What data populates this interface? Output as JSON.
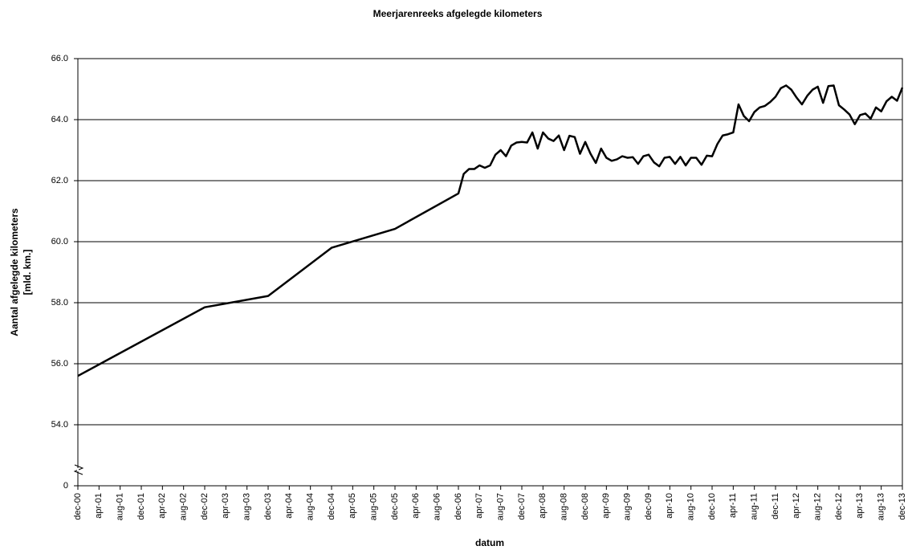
{
  "chart_data": {
    "type": "line",
    "title": "Meerjarenreeks afgelegde kilometers",
    "y_label": [
      "Aantal afgelegde kilometers",
      "[mld. km.]"
    ],
    "x_label": "datum",
    "color": "#000000",
    "grid": true,
    "ylim": [
      52,
      66
    ],
    "yticks": [
      {
        "value": 54,
        "label": "54.0"
      },
      {
        "value": 56,
        "label": "56.0"
      },
      {
        "value": 58,
        "label": "58.0"
      },
      {
        "value": 60,
        "label": "60.0"
      },
      {
        "value": 62,
        "label": "62.0"
      },
      {
        "value": 64,
        "label": "64.0"
      },
      {
        "value": 66,
        "label": "66.0"
      }
    ],
    "axis_break": {
      "value": 0,
      "label": "0"
    },
    "xlim": [
      "2000-12",
      "2013-12"
    ],
    "xticks": [
      {
        "value": "2000-12",
        "label": "dec-00"
      },
      {
        "value": "2001-04",
        "label": "apr-01"
      },
      {
        "value": "2001-08",
        "label": "aug-01"
      },
      {
        "value": "2001-12",
        "label": "dec-01"
      },
      {
        "value": "2002-04",
        "label": "apr-02"
      },
      {
        "value": "2002-08",
        "label": "aug-02"
      },
      {
        "value": "2002-12",
        "label": "dec-02"
      },
      {
        "value": "2003-04",
        "label": "apr-03"
      },
      {
        "value": "2003-08",
        "label": "aug-03"
      },
      {
        "value": "2003-12",
        "label": "dec-03"
      },
      {
        "value": "2004-04",
        "label": "apr-04"
      },
      {
        "value": "2004-08",
        "label": "aug-04"
      },
      {
        "value": "2004-12",
        "label": "dec-04"
      },
      {
        "value": "2005-04",
        "label": "apr-05"
      },
      {
        "value": "2005-08",
        "label": "aug-05"
      },
      {
        "value": "2005-12",
        "label": "dec-05"
      },
      {
        "value": "2006-04",
        "label": "apr-06"
      },
      {
        "value": "2006-08",
        "label": "aug-06"
      },
      {
        "value": "2006-12",
        "label": "dec-06"
      },
      {
        "value": "2007-04",
        "label": "apr-07"
      },
      {
        "value": "2007-08",
        "label": "aug-07"
      },
      {
        "value": "2007-12",
        "label": "dec-07"
      },
      {
        "value": "2008-04",
        "label": "apr-08"
      },
      {
        "value": "2008-08",
        "label": "aug-08"
      },
      {
        "value": "2008-12",
        "label": "dec-08"
      },
      {
        "value": "2009-04",
        "label": "apr-09"
      },
      {
        "value": "2009-08",
        "label": "aug-09"
      },
      {
        "value": "2009-12",
        "label": "dec-09"
      },
      {
        "value": "2010-04",
        "label": "apr-10"
      },
      {
        "value": "2010-08",
        "label": "aug-10"
      },
      {
        "value": "2010-12",
        "label": "dec-10"
      },
      {
        "value": "2011-04",
        "label": "apr-11"
      },
      {
        "value": "2011-08",
        "label": "aug-11"
      },
      {
        "value": "2011-12",
        "label": "dec-11"
      },
      {
        "value": "2012-04",
        "label": "apr-12"
      },
      {
        "value": "2012-08",
        "label": "aug-12"
      },
      {
        "value": "2012-12",
        "label": "dec-12"
      },
      {
        "value": "2013-04",
        "label": "apr-13"
      },
      {
        "value": "2013-08",
        "label": "aug-13"
      },
      {
        "value": "2013-12",
        "label": "dec-13"
      }
    ],
    "x": [
      "2000-12",
      "2002-12",
      "2003-12",
      "2004-12",
      "2005-12",
      "2006-12",
      "2007-01",
      "2007-02",
      "2007-03",
      "2007-04",
      "2007-05",
      "2007-06",
      "2007-07",
      "2007-08",
      "2007-09",
      "2007-10",
      "2007-11",
      "2007-12",
      "2008-01",
      "2008-02",
      "2008-03",
      "2008-04",
      "2008-05",
      "2008-06",
      "2008-07",
      "2008-08",
      "2008-09",
      "2008-10",
      "2008-11",
      "2008-12",
      "2009-01",
      "2009-02",
      "2009-03",
      "2009-04",
      "2009-05",
      "2009-06",
      "2009-07",
      "2009-08",
      "2009-09",
      "2009-10",
      "2009-11",
      "2009-12",
      "2010-01",
      "2010-02",
      "2010-03",
      "2010-04",
      "2010-05",
      "2010-06",
      "2010-07",
      "2010-08",
      "2010-09",
      "2010-10",
      "2010-11",
      "2010-12",
      "2011-01",
      "2011-02",
      "2011-03",
      "2011-04",
      "2011-05",
      "2011-06",
      "2011-07",
      "2011-08",
      "2011-09",
      "2011-10",
      "2011-11",
      "2011-12",
      "2012-01",
      "2012-02",
      "2012-03",
      "2012-04",
      "2012-05",
      "2012-06",
      "2012-07",
      "2012-08",
      "2012-09",
      "2012-10",
      "2012-11",
      "2012-12",
      "2013-01",
      "2013-02",
      "2013-03",
      "2013-04",
      "2013-05",
      "2013-06",
      "2013-07",
      "2013-08",
      "2013-09",
      "2013-10",
      "2013-11",
      "2013-12"
    ],
    "values": [
      55.6,
      57.85,
      58.22,
      59.8,
      60.42,
      61.58,
      62.22,
      62.38,
      62.38,
      62.5,
      62.42,
      62.5,
      62.85,
      63.0,
      62.8,
      63.15,
      63.25,
      63.27,
      63.25,
      63.58,
      63.05,
      63.58,
      63.38,
      63.3,
      63.48,
      63.0,
      63.47,
      63.43,
      62.88,
      63.27,
      62.88,
      62.58,
      63.05,
      62.75,
      62.65,
      62.7,
      62.8,
      62.75,
      62.77,
      62.55,
      62.8,
      62.85,
      62.6,
      62.47,
      62.75,
      62.78,
      62.55,
      62.78,
      62.5,
      62.75,
      62.75,
      62.52,
      62.82,
      62.8,
      63.2,
      63.48,
      63.52,
      63.58,
      64.5,
      64.12,
      63.95,
      64.25,
      64.4,
      64.45,
      64.58,
      64.75,
      65.03,
      65.12,
      64.98,
      64.72,
      64.5,
      64.78,
      64.98,
      65.08,
      64.55,
      65.1,
      65.12,
      64.47,
      64.33,
      64.17,
      63.85,
      64.15,
      64.2,
      64.03,
      64.4,
      64.27,
      64.6,
      64.75,
      64.62,
      65.05
    ]
  }
}
